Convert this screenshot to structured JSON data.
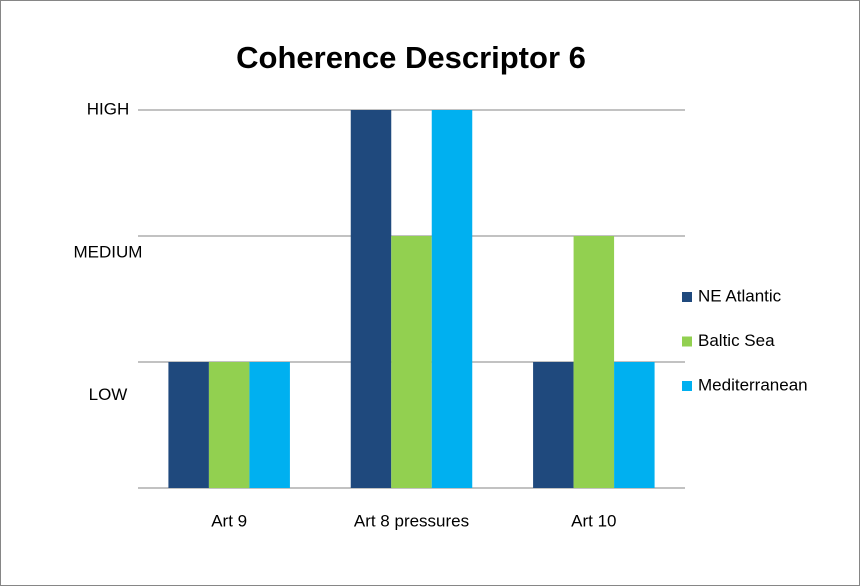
{
  "chart_data": {
    "type": "bar",
    "title": "Coherence Descriptor 6",
    "categories": [
      "Art 9",
      "Art 8 pressures",
      "Art 10"
    ],
    "series": [
      {
        "name": "NE Atlantic",
        "color": "#1f497d",
        "values": [
          1,
          3,
          1
        ]
      },
      {
        "name": "Baltic Sea",
        "color": "#92d050",
        "values": [
          1,
          2,
          2
        ]
      },
      {
        "name": "Mediterranean",
        "color": "#00b0f0",
        "values": [
          1,
          3,
          1
        ]
      }
    ],
    "ylim": [
      0,
      3
    ],
    "yticks": [
      {
        "value": 1,
        "label": "LOW"
      },
      {
        "value": 2,
        "label": "MEDIUM"
      },
      {
        "value": 3,
        "label": "HIGH"
      }
    ],
    "grid": true,
    "legend": "right"
  }
}
